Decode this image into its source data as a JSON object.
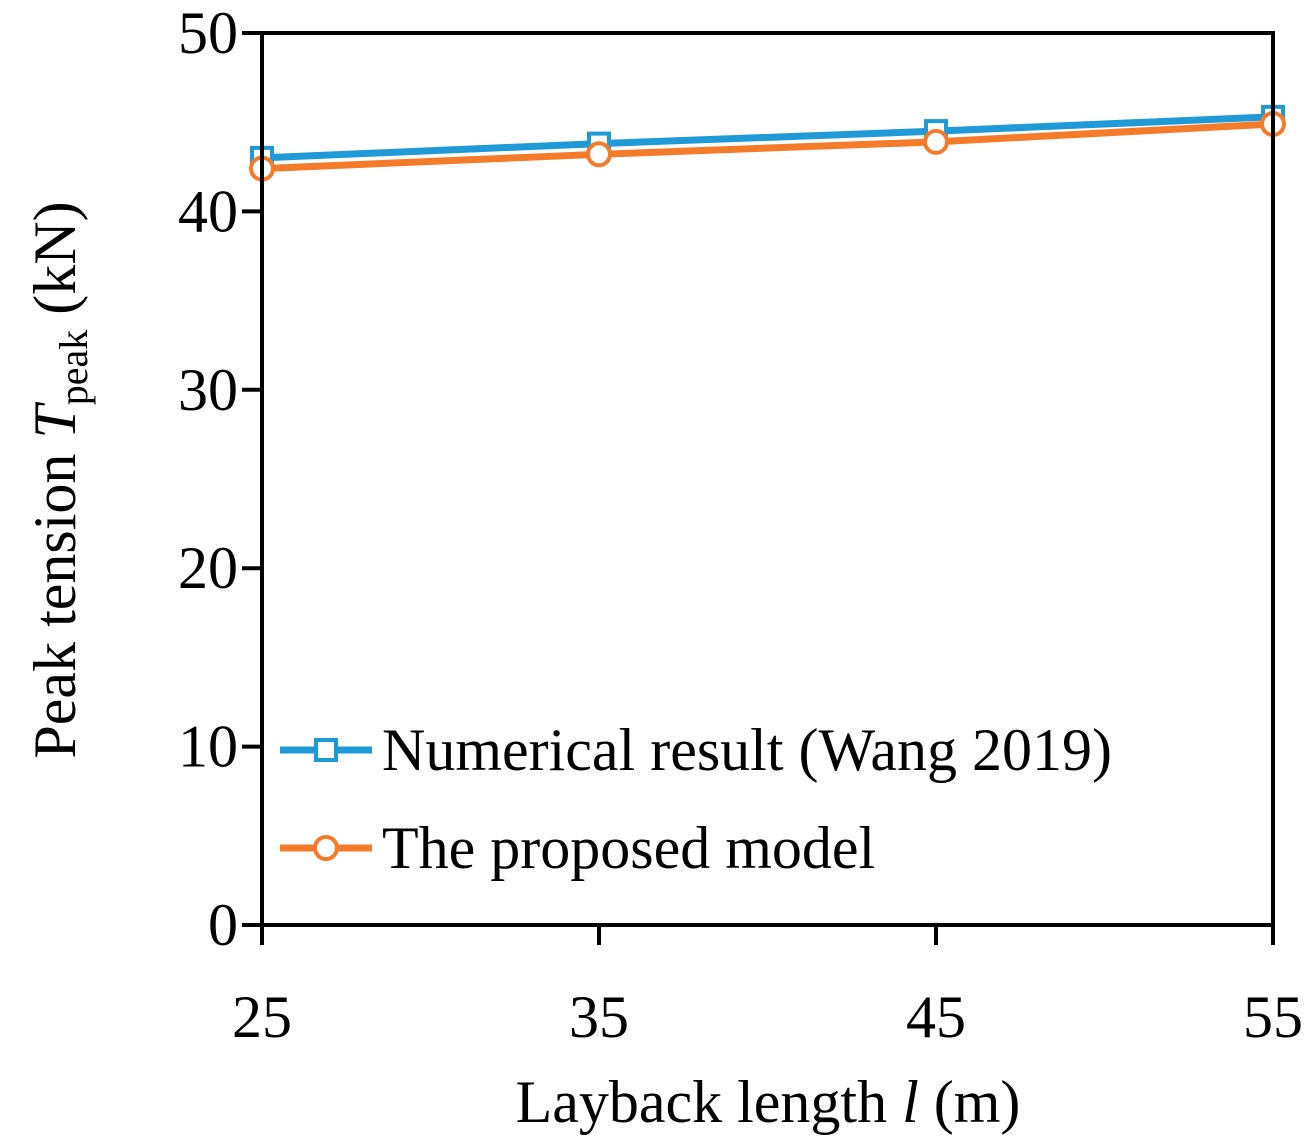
{
  "chart_data": {
    "type": "line",
    "title": "",
    "x": [
      25,
      35,
      45,
      55
    ],
    "xticks": [
      "25",
      "35",
      "45",
      "55"
    ],
    "yticks": [
      "0",
      "10",
      "20",
      "30",
      "40",
      "50"
    ],
    "xlim": [
      25,
      55
    ],
    "ylim": [
      0,
      50
    ],
    "xlabel": {
      "prefix": "Layback length ",
      "variable": "l",
      "suffix": " (m)"
    },
    "ylabel": {
      "prefix": "Peak tension ",
      "variable": "T",
      "subscript": "peak",
      "suffix": " (kN)"
    },
    "grid": false,
    "legend_position": "bottom-left",
    "series": [
      {
        "name": "Numerical result (Wang 2019)",
        "values": [
          43.0,
          43.8,
          44.5,
          45.3
        ],
        "color": "#1f9ad6",
        "marker": "square"
      },
      {
        "name": "The proposed model",
        "values": [
          42.4,
          43.2,
          43.9,
          44.9
        ],
        "color": "#f47b2a",
        "marker": "circle"
      }
    ]
  }
}
